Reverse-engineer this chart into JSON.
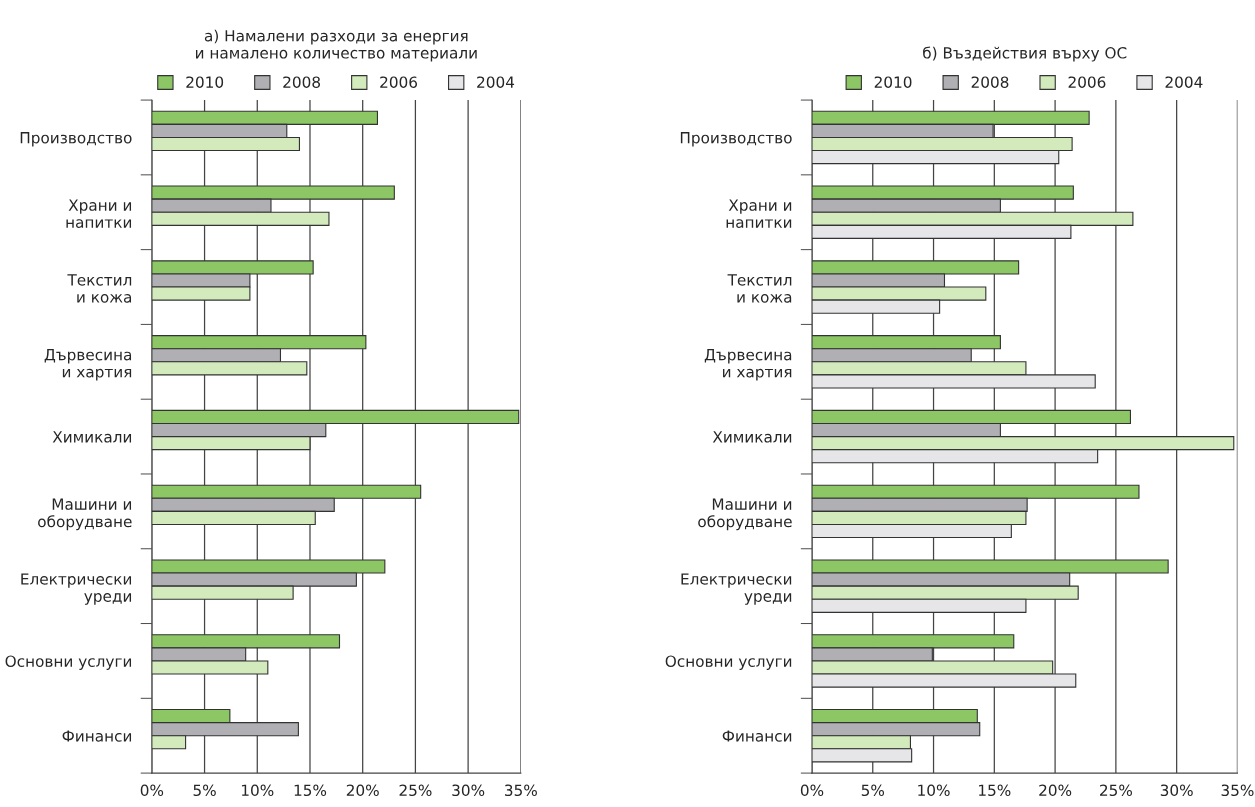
{
  "chart_data": [
    {
      "type": "bar",
      "orientation": "horizontal",
      "title": "а) Намалени разходи за енергия\nи намалено количество материали",
      "categories": [
        "Производство",
        "Храни и\nнапитки",
        "Текстил\nи кожа",
        "Дървесина\nи хартия",
        "Химикали",
        "Машини и\nоборудване",
        "Електрически\nуреди",
        "Основни услуги",
        "Финанси"
      ],
      "series": [
        {
          "name": "2010",
          "color": "#8dc765",
          "values": [
            21.4,
            23.0,
            15.3,
            20.3,
            34.8,
            25.5,
            22.1,
            17.8,
            7.4
          ]
        },
        {
          "name": "2008",
          "color": "#b0b0b4",
          "values": [
            12.8,
            11.3,
            9.3,
            12.2,
            16.5,
            17.3,
            19.4,
            8.9,
            13.9
          ]
        },
        {
          "name": "2006",
          "color": "#d2eabc",
          "values": [
            14.0,
            16.8,
            9.3,
            14.7,
            15.0,
            15.5,
            13.4,
            11.0,
            3.2
          ]
        },
        {
          "name": "2004",
          "color": "#e6e6e8",
          "values": [
            null,
            null,
            null,
            null,
            null,
            null,
            null,
            null,
            null
          ]
        }
      ],
      "xlim": [
        0,
        35
      ],
      "xticks": [
        {
          "value": 0,
          "label": "0%"
        },
        {
          "value": 5,
          "label": "5%"
        },
        {
          "value": 10,
          "label": "10%"
        },
        {
          "value": 15,
          "label": "15%"
        },
        {
          "value": 20,
          "label": "20%"
        },
        {
          "value": 25,
          "label": "25%"
        },
        {
          "value": 30,
          "label": "30%"
        },
        {
          "value": 35,
          "label": "35%"
        }
      ],
      "grid": "x",
      "legend": "top"
    },
    {
      "type": "bar",
      "orientation": "horizontal",
      "title": "б) Въздействия върху ОС",
      "categories": [
        "Производство",
        "Храни и\nнапитки",
        "Текстил\nи кожа",
        "Дървесина\nи хартия",
        "Химикали",
        "Машини и\nоборудване",
        "Електрически\nуреди",
        "Основни услуги",
        "Финанси"
      ],
      "series": [
        {
          "name": "2010",
          "color": "#8dc765",
          "values": [
            22.8,
            21.5,
            17.0,
            15.5,
            26.2,
            26.9,
            29.3,
            16.6,
            13.6
          ]
        },
        {
          "name": "2008",
          "color": "#b0b0b4",
          "values": [
            14.9,
            15.5,
            10.9,
            13.1,
            15.5,
            17.7,
            21.2,
            9.9,
            13.8
          ]
        },
        {
          "name": "2006",
          "color": "#d2eabc",
          "values": [
            21.4,
            26.4,
            14.3,
            17.6,
            34.7,
            17.6,
            21.9,
            19.8,
            8.1
          ]
        },
        {
          "name": "2004",
          "color": "#e6e6e8",
          "values": [
            20.3,
            21.3,
            10.5,
            23.3,
            23.5,
            16.4,
            17.6,
            21.7,
            8.2
          ]
        }
      ],
      "xlim": [
        0,
        35
      ],
      "xticks": [
        {
          "value": 0,
          "label": "0%"
        },
        {
          "value": 5,
          "label": "5%"
        },
        {
          "value": 10,
          "label": "10%"
        },
        {
          "value": 15,
          "label": "15%"
        },
        {
          "value": 20,
          "label": "20%"
        },
        {
          "value": 25,
          "label": "25%"
        },
        {
          "value": 30,
          "label": "30%"
        },
        {
          "value": 35,
          "label": "35%"
        }
      ],
      "grid": "x",
      "legend": "top"
    }
  ]
}
